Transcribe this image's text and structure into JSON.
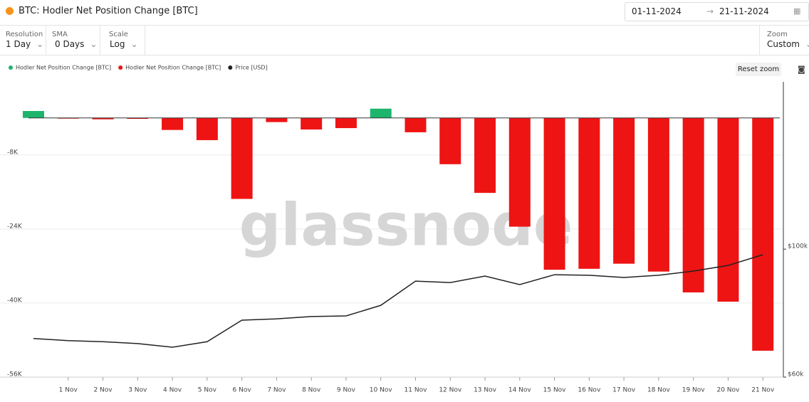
{
  "header": {
    "title": "BTC: Hodler Net Position Change [BTC]",
    "date_from": "01-11-2024",
    "date_to": "21-11-2024"
  },
  "controls": [
    {
      "label": "Resolution",
      "value": "1 Day"
    },
    {
      "label": "SMA",
      "value": "0 Days"
    },
    {
      "label": "Scale",
      "value": "Log"
    },
    {
      "label": "Zoom",
      "value": "Custom"
    }
  ],
  "reset_button": "Reset zoom",
  "chart_data": {
    "type": "bar",
    "watermark": "glassnode",
    "categories": [
      null,
      "1 Nov",
      "2 Nov",
      "3 Nov",
      "4 Nov",
      "5 Nov",
      "6 Nov",
      "7 Nov",
      "8 Nov",
      "9 Nov",
      "10 Nov",
      "11 Nov",
      "12 Nov",
      "13 Nov",
      "14 Nov",
      "15 Nov",
      "16 Nov",
      "17 Nov",
      "18 Nov",
      "19 Nov",
      "20 Nov",
      "21 Nov"
    ],
    "series": [
      {
        "name": "Hodler Net Position Change [BTC]",
        "color": "#1db56c",
        "values": [
          1500,
          null,
          null,
          null,
          null,
          null,
          null,
          null,
          null,
          null,
          2000,
          null,
          null,
          null,
          null,
          null,
          null,
          null,
          null,
          null,
          null,
          null
        ]
      },
      {
        "name": "Hodler Net Position Change [BTC]",
        "color": "#ee1414",
        "values": [
          null,
          -150,
          -300,
          -200,
          -2600,
          -4800,
          -17500,
          -900,
          -2500,
          -2200,
          null,
          -3100,
          -10000,
          -16200,
          -23500,
          -32800,
          -32600,
          -31500,
          -33200,
          -37700,
          -39700,
          -50300
        ]
      },
      {
        "name": "Price [USD]",
        "color": "#222222",
        "axis": "y2",
        "values": [
          70000,
          69400,
          69100,
          68600,
          67600,
          69100,
          75300,
          75700,
          76400,
          76600,
          79900,
          88000,
          87500,
          89800,
          86800,
          90300,
          90100,
          89300,
          90100,
          91600,
          93700,
          97800
        ]
      }
    ],
    "ylim": [
      -56000,
      7800
    ],
    "yticks": [
      {
        "value": -8000,
        "label": "-8K"
      },
      {
        "value": -24000,
        "label": "-24K"
      },
      {
        "value": -40000,
        "label": "-40K"
      },
      {
        "value": -56000,
        "label": "-56K"
      }
    ],
    "y2lim": [
      60000,
      195000
    ],
    "y2log": true,
    "y2ticks": [
      {
        "value": 60000,
        "label": "$60k"
      },
      {
        "value": 100000,
        "label": "$100k"
      }
    ],
    "grid": true
  }
}
